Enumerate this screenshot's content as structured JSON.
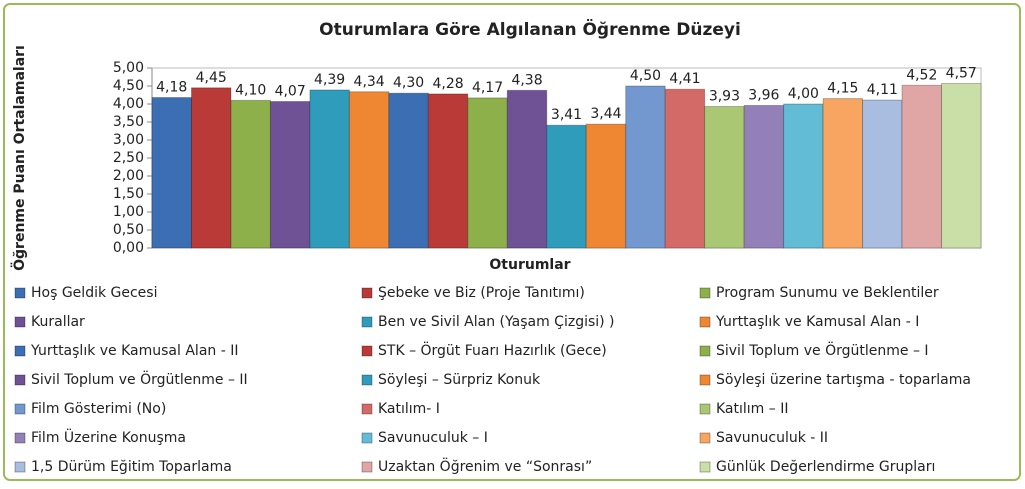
{
  "chart_data": {
    "type": "bar",
    "title": "Oturumlara Göre Algılanan Öğrenme Düzeyi",
    "x_label": "Oturumlar",
    "y_label": "Öğrenme Puanı Ortalamaları",
    "categories": [
      null
    ],
    "ylim": [
      0,
      5
    ],
    "yticks": [
      {
        "value": 0,
        "label": "0,00"
      },
      {
        "value": 0.5,
        "label": "0,50"
      },
      {
        "value": 1,
        "label": "1,00"
      },
      {
        "value": 1.5,
        "label": "1,50"
      },
      {
        "value": 2,
        "label": "2,00"
      },
      {
        "value": 2.5,
        "label": "2,50"
      },
      {
        "value": 3,
        "label": "3,00"
      },
      {
        "value": 3.5,
        "label": "3,50"
      },
      {
        "value": 4,
        "label": "4,00"
      },
      {
        "value": 4.5,
        "label": "4,50"
      },
      {
        "value": 5,
        "label": "5,00"
      }
    ],
    "grid": false,
    "series": [
      {
        "name": "Hoş Geldik Gecesi",
        "color": "#3c6eb4",
        "values": [
          4.18
        ],
        "value_labels": [
          "4,18"
        ]
      },
      {
        "name": "Şebeke ve Biz (Proje Tanıtımı)",
        "color": "#b93a37",
        "values": [
          4.45
        ],
        "value_labels": [
          "4,45"
        ]
      },
      {
        "name": "Program Sunumu ve Beklentiler",
        "color": "#8db04a",
        "values": [
          4.1
        ],
        "value_labels": [
          "4,10"
        ]
      },
      {
        "name": "Kurallar",
        "color": "#6f5196",
        "values": [
          4.07
        ],
        "value_labels": [
          "4,07"
        ]
      },
      {
        "name": "Ben ve Sivil Alan (Yaşam Çizgisi) )",
        "color": "#2f9cbc",
        "values": [
          4.39
        ],
        "value_labels": [
          "4,39"
        ]
      },
      {
        "name": "Yurttaşlık ve Kamusal Alan - I",
        "color": "#ef8632",
        "values": [
          4.34
        ],
        "value_labels": [
          "4,34"
        ]
      },
      {
        "name": "Yurttaşlık ve Kamusal Alan - II",
        "color": "#3c6eb4",
        "values": [
          4.3
        ],
        "value_labels": [
          "4,30"
        ]
      },
      {
        "name": "STK – Örgüt Fuarı Hazırlık (Gece)",
        "color": "#b93a37",
        "values": [
          4.28
        ],
        "value_labels": [
          "4,28"
        ]
      },
      {
        "name": "Sivil Toplum ve Örgütlenme – I",
        "color": "#8db04a",
        "values": [
          4.17
        ],
        "value_labels": [
          "4,17"
        ]
      },
      {
        "name": "Sivil Toplum ve Örgütlenme – II",
        "color": "#6f5196",
        "values": [
          4.38
        ],
        "value_labels": [
          "4,38"
        ]
      },
      {
        "name": "Söyleşi – Sürpriz Konuk",
        "color": "#2f9cbc",
        "values": [
          3.41
        ],
        "value_labels": [
          "3,41"
        ]
      },
      {
        "name": "Söyleşi üzerine tartışma - toparlama",
        "color": "#ef8632",
        "values": [
          3.44
        ],
        "value_labels": [
          "3,44"
        ]
      },
      {
        "name": "Film Gösterimi (No)",
        "color": "#7298cf",
        "values": [
          4.5
        ],
        "value_labels": [
          "4,50"
        ]
      },
      {
        "name": "Katılım- I",
        "color": "#d46a68",
        "values": [
          4.41
        ],
        "value_labels": [
          "4,41"
        ]
      },
      {
        "name": "Katılım – II",
        "color": "#aac874",
        "values": [
          3.93
        ],
        "value_labels": [
          "3,93"
        ]
      },
      {
        "name": "Film Üzerine Konuşma",
        "color": "#9480b8",
        "values": [
          3.96
        ],
        "value_labels": [
          "3,96"
        ]
      },
      {
        "name": "Savunuculuk – I",
        "color": "#63bcd6",
        "values": [
          4.0
        ],
        "value_labels": [
          "4,00"
        ]
      },
      {
        "name": "Savunuculuk - II",
        "color": "#f7a560",
        "values": [
          4.15
        ],
        "value_labels": [
          "4,15"
        ]
      },
      {
        "name": "1,5 Dürüm Eğitim Toparlama",
        "color": "#a8bde0",
        "values": [
          4.11
        ],
        "value_labels": [
          "4,11"
        ]
      },
      {
        "name": "Uzaktan Öğrenim ve “Sonrası”",
        "color": "#e0a6a6",
        "values": [
          4.52
        ],
        "value_labels": [
          "4,52"
        ]
      },
      {
        "name": "Günlük Değerlendirme Grupları",
        "color": "#cadfa8",
        "values": [
          4.57
        ],
        "value_labels": [
          "4,57"
        ]
      }
    ]
  }
}
